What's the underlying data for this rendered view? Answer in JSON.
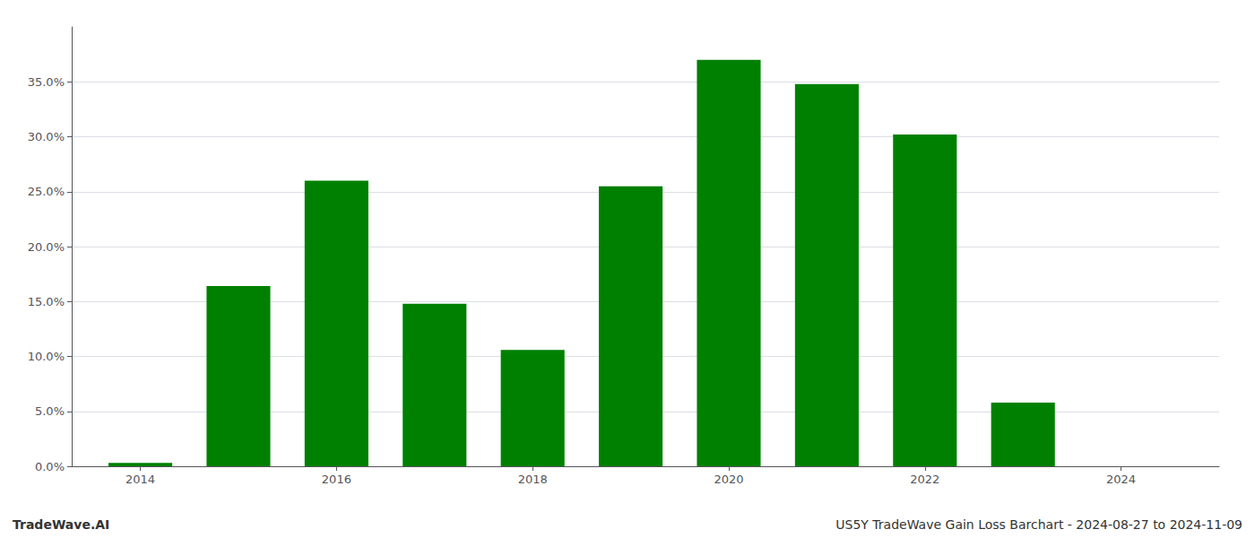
{
  "chart_data": {
    "type": "bar",
    "x": [
      2014,
      2015,
      2016,
      2017,
      2018,
      2019,
      2020,
      2021,
      2022,
      2023,
      2024
    ],
    "values": [
      0.003,
      0.164,
      0.26,
      0.148,
      0.106,
      0.255,
      0.37,
      0.348,
      0.302,
      0.058,
      0.0
    ],
    "color": "#008000",
    "xlim": [
      2013.3,
      2025.0
    ],
    "xticks": [
      2014,
      2016,
      2018,
      2020,
      2022,
      2024
    ],
    "ylim": [
      0,
      0.4
    ],
    "yticks": [
      {
        "value": 0.0,
        "label": "0.0%"
      },
      {
        "value": 0.05,
        "label": "5.0%"
      },
      {
        "value": 0.1,
        "label": "10.0%"
      },
      {
        "value": 0.15,
        "label": "15.0%"
      },
      {
        "value": 0.2,
        "label": "20.0%"
      },
      {
        "value": 0.25,
        "label": "25.0%"
      },
      {
        "value": 0.3,
        "label": "30.0%"
      },
      {
        "value": 0.35,
        "label": "35.0%"
      }
    ],
    "grid": true,
    "annotations": [
      "TradeWave.AI",
      "US5Y TradeWave Gain Loss Barchart - 2024-08-27 to 2024-11-09"
    ]
  }
}
